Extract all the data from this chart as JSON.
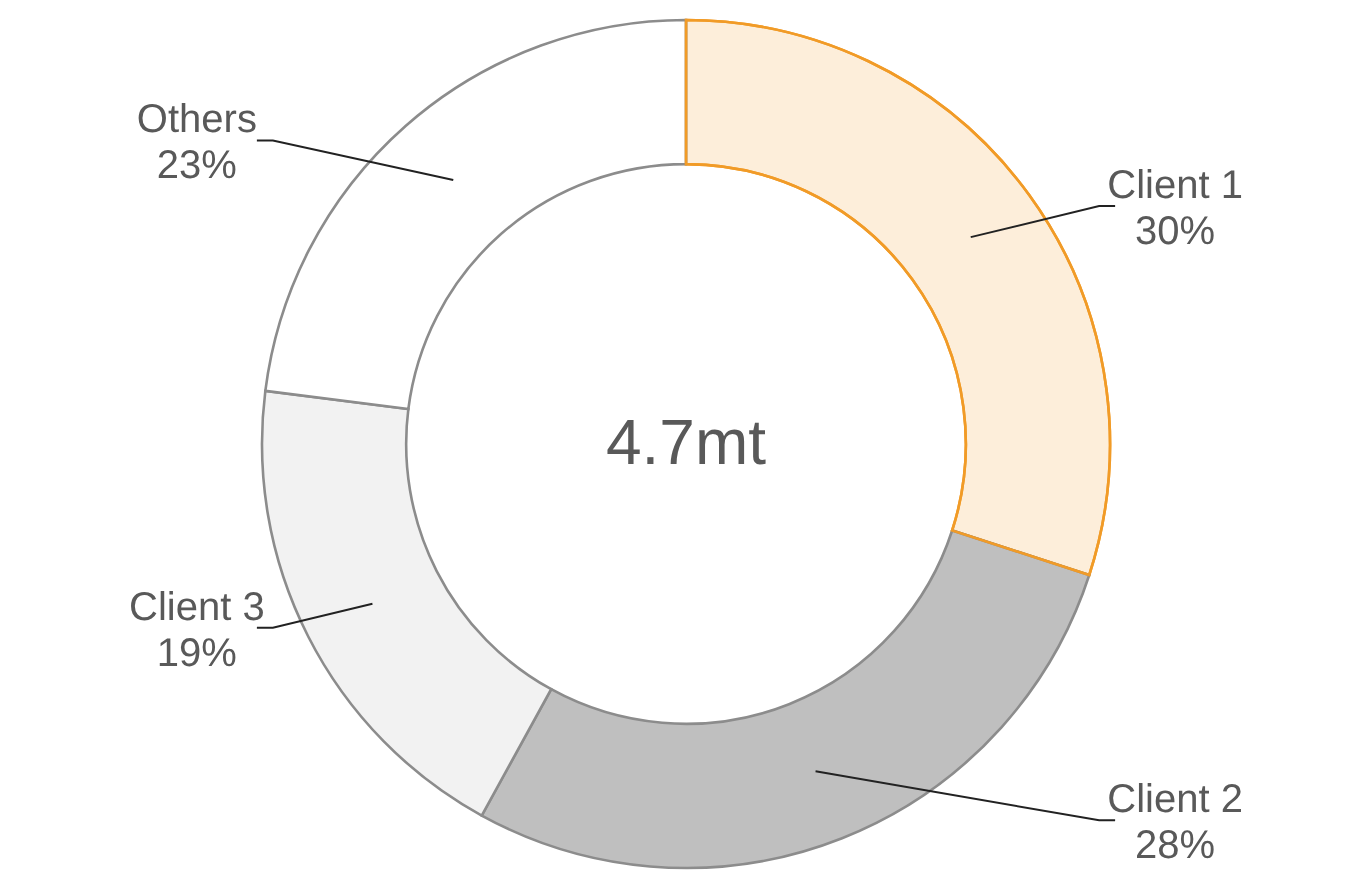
{
  "chart_data": {
    "type": "donut",
    "categories": [
      "Client 1",
      "Client 2",
      "Client 3",
      "Others"
    ],
    "values": [
      30,
      28,
      19,
      23
    ],
    "colors": [
      "#fdeeda",
      "#bfbfbf",
      "#f2f2f2",
      "#ffffff"
    ],
    "annotations": [
      "4.7mt"
    ],
    "value_labels": [
      "30%",
      "28%",
      "19%",
      "23%"
    ]
  }
}
